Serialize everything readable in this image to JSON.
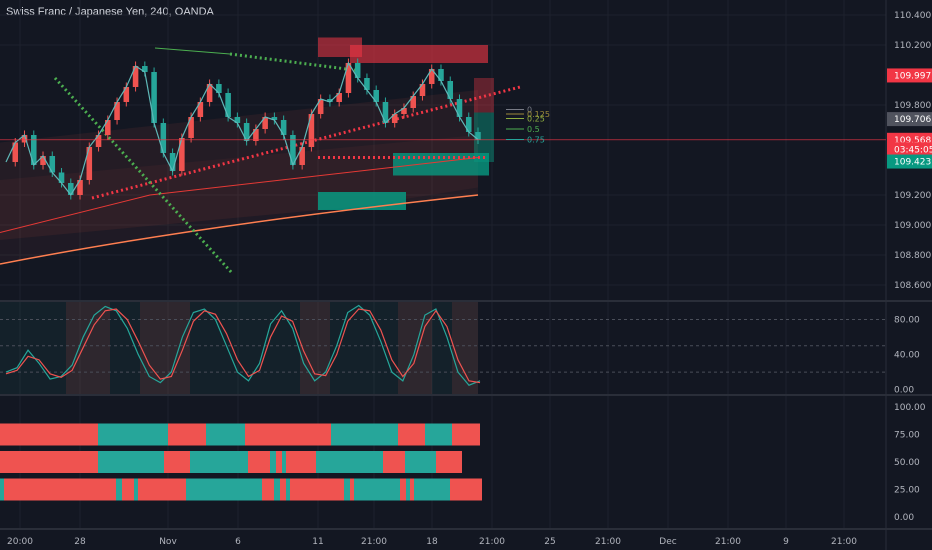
{
  "header": {
    "title": "Swiss Franc / Japanese Yen, 240, OANDA"
  },
  "colors": {
    "background": "#131722",
    "grid": "#1e222d",
    "bull": "#ef5350",
    "bear": "#26a69a",
    "axis_text": "#b2b5be",
    "red_badge": "#f23645",
    "green_badge": "#089981",
    "gray_badge": "#50535e"
  },
  "chart_data": [
    {
      "type": "line",
      "panel": "price",
      "ylim": [
        108.5,
        110.5
      ],
      "y_ticks": [
        "110.400",
        "110.200",
        "109.800",
        "109.200",
        "109.000",
        "108.800",
        "108.600"
      ],
      "y_tick_values": [
        110.4,
        110.2,
        109.8,
        109.2,
        109.0,
        108.8,
        108.6
      ],
      "price_labels": [
        {
          "id": "last",
          "text": "109.997",
          "value": 109.997,
          "color": "#f23645"
        },
        {
          "id": "level",
          "text": "109.706",
          "value": 109.706,
          "color": "#50535e"
        },
        {
          "id": "current",
          "text": "109.568",
          "value": 109.568,
          "color": "#f23645"
        },
        {
          "id": "countdown",
          "text": "03:45:05",
          "value": 109.505,
          "color": "#f23645"
        },
        {
          "id": "support",
          "text": "109.423",
          "value": 109.423,
          "color": "#089981"
        }
      ],
      "fib_labels": [
        "0",
        "0.125",
        "0.25",
        "0.5",
        "0.75"
      ],
      "fib_values": [
        109.77,
        109.74,
        109.71,
        109.64,
        109.57
      ],
      "x_labels": [
        "20:00",
        "28",
        "Nov",
        "6",
        "11",
        "21:00",
        "18",
        "21:00",
        "25",
        "21:00",
        "Dec",
        "21:00",
        "9",
        "21:00"
      ],
      "price_path": [
        109.42,
        109.55,
        109.6,
        109.4,
        109.46,
        109.35,
        109.28,
        109.2,
        109.3,
        109.52,
        109.6,
        109.7,
        109.82,
        109.92,
        110.06,
        110.02,
        109.68,
        109.48,
        109.36,
        109.58,
        109.72,
        109.82,
        109.94,
        109.88,
        109.72,
        109.68,
        109.56,
        109.64,
        109.72,
        109.7,
        109.6,
        109.4,
        109.52,
        109.74,
        109.84,
        109.82,
        109.88,
        110.08,
        109.98,
        109.9,
        109.82,
        109.68,
        109.74,
        109.78,
        109.86,
        109.94,
        110.04,
        109.96,
        109.84,
        109.72,
        109.62,
        109.57
      ]
    },
    {
      "type": "line",
      "panel": "stochastic",
      "ylim": [
        -5,
        100
      ],
      "y_ticks": [
        "80.00",
        "40.00",
        "0.00"
      ],
      "y_tick_values": [
        80,
        40,
        0
      ],
      "series": [
        {
          "values": [
            20,
            25,
            45,
            30,
            12,
            15,
            28,
            60,
            85,
            95,
            90,
            70,
            40,
            15,
            8,
            20,
            60,
            88,
            92,
            80,
            50,
            20,
            10,
            30,
            75,
            90,
            70,
            30,
            10,
            20,
            50,
            88,
            96,
            85,
            55,
            20,
            10,
            40,
            85,
            92,
            60,
            20,
            5,
            10
          ],
          "color": "#26a69a"
        },
        {
          "values": [
            18,
            22,
            38,
            34,
            18,
            14,
            22,
            48,
            74,
            90,
            92,
            80,
            55,
            28,
            12,
            15,
            45,
            78,
            90,
            86,
            64,
            34,
            15,
            22,
            60,
            84,
            78,
            44,
            18,
            16,
            40,
            78,
            92,
            90,
            68,
            34,
            15,
            30,
            72,
            90,
            72,
            34,
            10,
            8
          ],
          "color": "#ef5350"
        }
      ]
    },
    {
      "type": "heatmap",
      "panel": "trend",
      "ylim": [
        -10,
        110
      ],
      "y_ticks": [
        "100.00",
        "75.00",
        "50.00",
        "25.00",
        "0.00"
      ],
      "y_tick_values": [
        100,
        75,
        50,
        25,
        0
      ],
      "rows": [
        {
          "value": 75,
          "segments": [
            [
              "r",
              98
            ],
            [
              "t",
              70
            ],
            [
              "r",
              38
            ],
            [
              "t",
              39
            ],
            [
              "r",
              86
            ],
            [
              "t",
              67
            ],
            [
              "r",
              27
            ],
            [
              "t",
              27
            ],
            [
              "r",
              28
            ]
          ]
        },
        {
          "value": 50,
          "segments": [
            [
              "r",
              98
            ],
            [
              "t",
              66
            ],
            [
              "r",
              26
            ],
            [
              "t",
              58
            ],
            [
              "r",
              22
            ],
            [
              "t",
              6
            ],
            [
              "r",
              6
            ],
            [
              "t",
              4
            ],
            [
              "r",
              30
            ],
            [
              "t",
              67
            ],
            [
              "r",
              22
            ],
            [
              "t",
              31
            ],
            [
              "r",
              26
            ]
          ]
        },
        {
          "value": 25,
          "segments": [
            [
              "t",
              4
            ],
            [
              "r",
              112
            ],
            [
              "t",
              6
            ],
            [
              "r",
              12
            ],
            [
              "t",
              4
            ],
            [
              "r",
              48
            ],
            [
              "t",
              76
            ],
            [
              "r",
              12
            ],
            [
              "t",
              6
            ],
            [
              "r",
              6
            ],
            [
              "t",
              4
            ],
            [
              "r",
              54
            ],
            [
              "t",
              6
            ],
            [
              "r",
              4
            ],
            [
              "t",
              46
            ],
            [
              "r",
              6
            ],
            [
              "t",
              4
            ],
            [
              "r",
              4
            ],
            [
              "t",
              36
            ],
            [
              "r",
              32
            ]
          ]
        }
      ]
    }
  ]
}
